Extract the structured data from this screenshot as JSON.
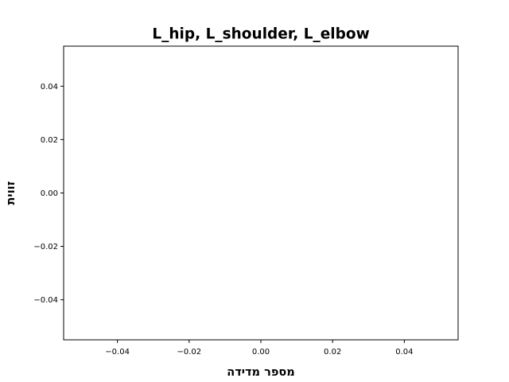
{
  "chart_data": {
    "type": "line",
    "title": "L_hip, L_shoulder, L_elbow",
    "xlabel": "מספר מדידה",
    "ylabel": "זווית",
    "xlim": [
      -0.055,
      0.055
    ],
    "ylim": [
      -0.055,
      0.055
    ],
    "x_ticks": [
      -0.04,
      -0.02,
      0.0,
      0.02,
      0.04
    ],
    "x_tick_labels": [
      "−0.04",
      "−0.02",
      "0.00",
      "0.02",
      "0.04"
    ],
    "y_ticks": [
      -0.04,
      -0.02,
      0.0,
      0.02,
      0.04
    ],
    "y_tick_labels": [
      "−0.04",
      "−0.02",
      "0.00",
      "0.02",
      "0.04"
    ],
    "grid": false,
    "series": []
  }
}
